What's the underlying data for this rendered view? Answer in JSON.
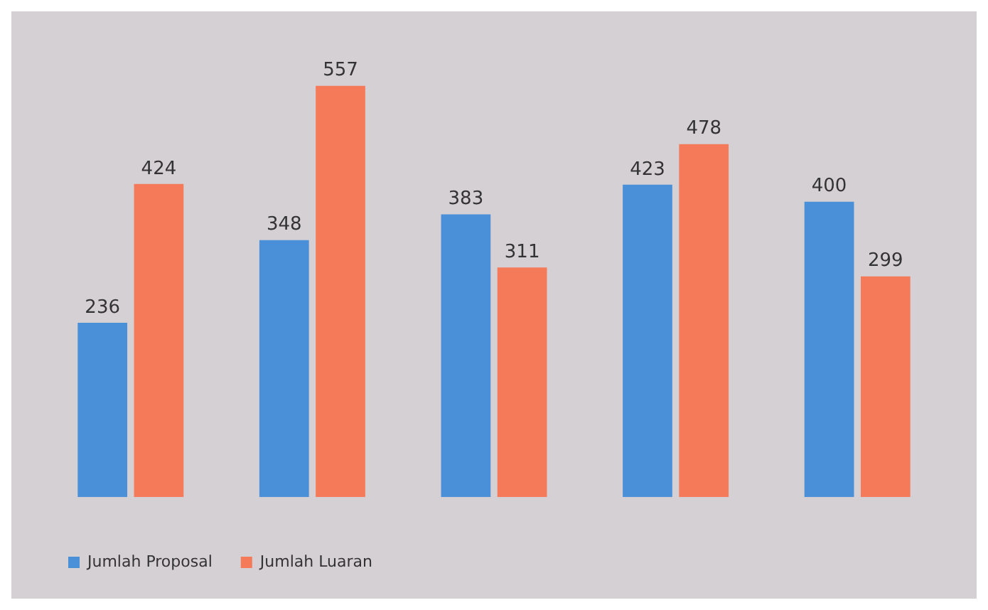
{
  "chart_data": {
    "type": "bar",
    "categories": [
      null,
      null,
      null,
      null,
      null
    ],
    "series": [
      {
        "name": "Jumlah Proposal",
        "color": "#4a90d9",
        "values": [
          236,
          348,
          383,
          423,
          400
        ]
      },
      {
        "name": "Jumlah Luaran",
        "color": "#f47a5a",
        "values": [
          424,
          557,
          311,
          478,
          299
        ]
      }
    ],
    "data_labels": true,
    "legend": "bottom left",
    "grid": false
  }
}
